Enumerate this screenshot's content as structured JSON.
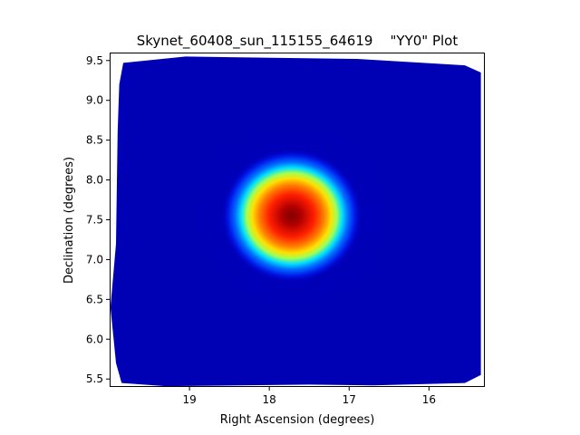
{
  "chart_data": {
    "type": "heatmap",
    "title": "Skynet_60408_sun_115155_64619    \"YY0\" Plot",
    "xlabel": "Right Ascension (degrees)",
    "ylabel": "Declination (degrees)",
    "xlim": [
      20.0,
      15.3
    ],
    "ylim": [
      5.4,
      9.6
    ],
    "x_ticks": [
      19,
      18,
      17,
      16
    ],
    "x_tick_labels": [
      "19",
      "18",
      "17",
      "16"
    ],
    "y_ticks": [
      5.5,
      6.0,
      6.5,
      7.0,
      7.5,
      8.0,
      8.5,
      9.0,
      9.5
    ],
    "y_tick_labels": [
      "5.5",
      "6.0",
      "6.5",
      "7.0",
      "7.5",
      "8.0",
      "8.5",
      "9.0",
      "9.5"
    ],
    "colormap": "jet",
    "background_level": 0.12,
    "source": {
      "ra": 17.72,
      "dec": 7.55,
      "peak": 1.0,
      "radius_deg": 0.75
    },
    "coverage_polygon": [
      [
        19.83,
        9.47
      ],
      [
        19.05,
        9.55
      ],
      [
        16.9,
        9.52
      ],
      [
        15.55,
        9.44
      ],
      [
        15.35,
        9.35
      ],
      [
        15.35,
        7.7
      ],
      [
        15.35,
        7.45
      ],
      [
        15.35,
        5.55
      ],
      [
        15.55,
        5.45
      ],
      [
        16.7,
        5.42
      ],
      [
        17.5,
        5.43
      ],
      [
        19.3,
        5.41
      ],
      [
        19.85,
        5.45
      ],
      [
        19.92,
        5.7
      ],
      [
        19.99,
        6.4
      ],
      [
        19.92,
        7.2
      ],
      [
        19.9,
        8.6
      ],
      [
        19.88,
        9.2
      ]
    ],
    "grid": false
  }
}
